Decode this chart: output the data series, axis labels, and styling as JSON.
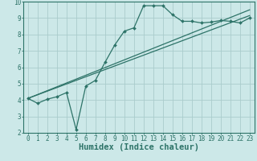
{
  "xlabel": "Humidex (Indice chaleur)",
  "bg_color": "#cce8e8",
  "line_color": "#2d7368",
  "grid_color": "#aacccc",
  "xlim": [
    -0.5,
    23.5
  ],
  "ylim": [
    2,
    10
  ],
  "xticks": [
    0,
    1,
    2,
    3,
    4,
    5,
    6,
    7,
    8,
    9,
    10,
    11,
    12,
    13,
    14,
    15,
    16,
    17,
    18,
    19,
    20,
    21,
    22,
    23
  ],
  "yticks": [
    2,
    3,
    4,
    5,
    6,
    7,
    8,
    9,
    10
  ],
  "curve1_x": [
    0,
    1,
    2,
    3,
    4,
    5,
    6,
    7,
    8,
    9,
    10,
    11,
    12,
    13,
    14,
    15,
    16,
    17,
    18,
    19,
    20,
    21,
    22,
    23
  ],
  "curve1_y": [
    4.1,
    3.8,
    4.05,
    4.2,
    4.45,
    2.2,
    4.85,
    5.2,
    6.3,
    7.35,
    8.2,
    8.4,
    9.75,
    9.75,
    9.75,
    9.2,
    8.8,
    8.8,
    8.7,
    8.75,
    8.85,
    8.8,
    8.7,
    9.0
  ],
  "curve2_x": [
    0,
    23
  ],
  "curve2_y": [
    4.1,
    9.15
  ],
  "curve3_x": [
    0,
    23
  ],
  "curve3_y": [
    4.1,
    9.5
  ],
  "font_family": "monospace",
  "xlabel_fontsize": 7.5,
  "tick_fontsize": 5.5
}
